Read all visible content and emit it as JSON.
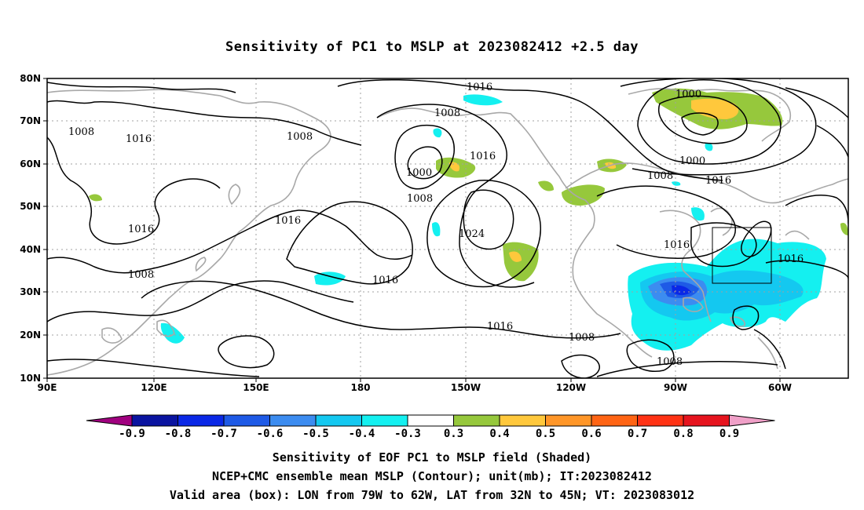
{
  "title": "Sensitivity of PC1 to MSLP at 2023082412 +2.5 day",
  "lat_labels": [
    "80N",
    "70N",
    "60N",
    "50N",
    "40N",
    "30N",
    "20N",
    "10N"
  ],
  "lon_labels": [
    "90E",
    "120E",
    "150E",
    "180",
    "150W",
    "120W",
    "90W",
    "60W"
  ],
  "contour_labels": {
    "c1": "1016",
    "c2": "1008",
    "c3": "1008",
    "c4": "1016",
    "c5": "1008",
    "c6": "1000",
    "c7": "1008",
    "c8": "1016",
    "c9": "1000",
    "c10": "1000",
    "c11": "1008",
    "c12": "1016",
    "c13": "1016",
    "c14": "1016",
    "c15": "1024",
    "c16": "1016",
    "c17": "1016",
    "c18": "1016",
    "c19": "1008",
    "c20": "1016",
    "c21": "1008",
    "c22": "1008"
  },
  "colorbar": {
    "labels": [
      "-0.9",
      "-0.8",
      "-0.7",
      "-0.6",
      "-0.5",
      "-0.4",
      "-0.3",
      "0.3",
      "0.4",
      "0.5",
      "0.6",
      "0.7",
      "0.8",
      "0.9"
    ],
    "colors": [
      "#a0007f",
      "#0a14a0",
      "#0a28e6",
      "#1e5ae6",
      "#3c8cf0",
      "#14c8f0",
      "#14f0f0",
      "#ffffff",
      "#96c83c",
      "#ffc83c",
      "#ff9628",
      "#ff6414",
      "#ff3214",
      "#e6141e",
      "#f0a0c8"
    ]
  },
  "footer": {
    "line1": "Sensitivity of EOF PC1 to MSLP field (Shaded)",
    "line2": "NCEP+CMC ensemble mean MSLP (Contour); unit(mb); IT:2023082412",
    "line3": "Valid area (box): LON from 79W to 62W, LAT from 32N to 45N; VT: 2023083012"
  }
}
